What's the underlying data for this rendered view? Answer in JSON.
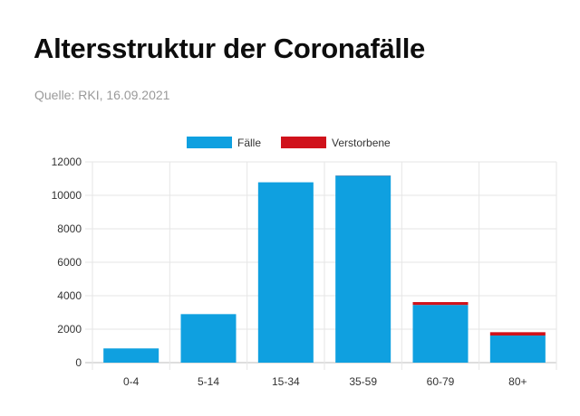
{
  "title": "Altersstruktur der Coronafälle",
  "source": "Quelle: RKI, 16.09.2021",
  "chart_data": {
    "type": "bar",
    "stacked": true,
    "categories": [
      "0-4",
      "5-14",
      "15-34",
      "35-59",
      "60-79",
      "80+"
    ],
    "series": [
      {
        "name": "Fälle",
        "color": "#0fa0e0",
        "values": [
          850,
          2900,
          10780,
          11180,
          3450,
          1620
        ]
      },
      {
        "name": "Verstorbene",
        "color": "#d0121b",
        "values": [
          0,
          0,
          0,
          10,
          170,
          200
        ]
      }
    ],
    "ylim": [
      0,
      12000
    ],
    "yticks": [
      0,
      2000,
      4000,
      6000,
      8000,
      10000,
      12000
    ],
    "ytick_labels": [
      "0",
      "2000",
      "4000",
      "6000",
      "8000",
      "10000",
      "12000"
    ],
    "grid": true,
    "legend_position": "top-center",
    "xlabel": "",
    "ylabel": ""
  }
}
